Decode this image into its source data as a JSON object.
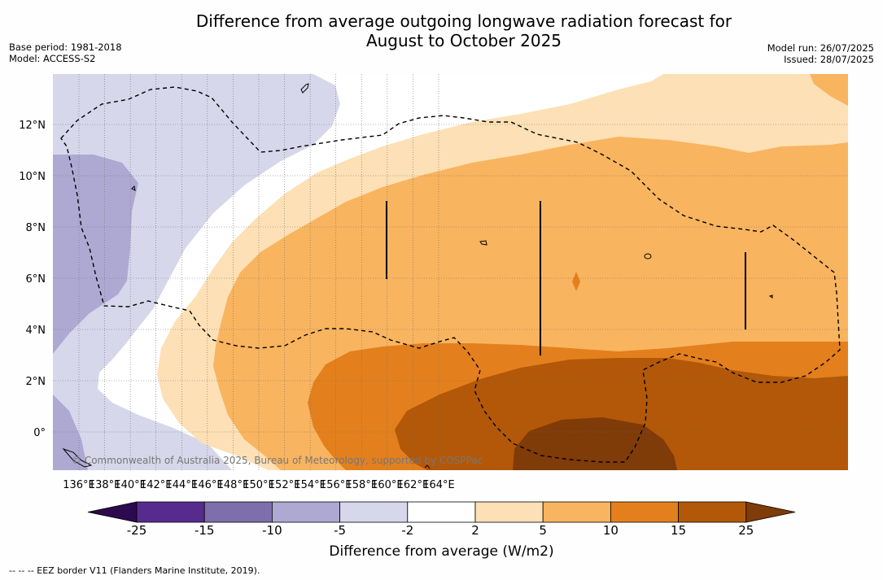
{
  "title_line1": "Difference from average outgoing longwave radiation forecast for",
  "title_line2": "August to October 2025",
  "base_period": "Base period: 1981-2018",
  "model": "Model: ACCESS-S2",
  "model_run": "Model run: 26/07/2025",
  "issued": "Issued: 28/07/2025",
  "copyright": "© Commonwealth of Australia 2025, Bureau of Meteorology, supported by COSPPac",
  "eez_note": "--  --  -- EEZ border V11 (Flanders Marine Institute, 2019).",
  "colorbar": {
    "title": "Difference from average (W/m2)",
    "tick_labels": [
      "-25",
      "-15",
      "-10",
      "-5",
      "-2",
      "2",
      "5",
      "10",
      "15",
      "25"
    ],
    "bin_colors": [
      "#572b8e",
      "#7c6fab",
      "#aea9d3",
      "#d6d7ea",
      "#ffffff",
      "#fde0b5",
      "#f9b45f",
      "#e3801d",
      "#b25808"
    ],
    "under_color": "#2d0a4e",
    "over_color": "#7f3b08"
  },
  "map": {
    "lon_labels": [
      "136°E",
      "138°E",
      "140°E",
      "142°E",
      "144°E",
      "146°E",
      "148°E",
      "150°E",
      "152°E",
      "154°E",
      "156°E",
      "158°E",
      "160°E",
      "162°E",
      "164°E"
    ],
    "lat_labels": [
      "12°N",
      "10°N",
      "8°N",
      "6°N",
      "4°N",
      "2°N",
      "0°"
    ]
  },
  "chart_data": {
    "type": "heatmap",
    "title": "Difference from average outgoing longwave radiation forecast for August to October 2025",
    "variable": "Difference from average outgoing longwave radiation (W/m2)",
    "levels": [
      -25,
      -15,
      -10,
      -5,
      -2,
      2,
      5,
      10,
      15,
      25
    ],
    "lon_range": [
      "135°E",
      "166°E"
    ],
    "lat_range": [
      "1.5°S",
      "14°N"
    ],
    "pattern": "Negative anomalies (-10 to -2 W/m2) in the west/north-west (135–147°E, north of ~5°N); positive anomalies increasing toward the south-east, peaking 15–25 W/m2 near 154–159°E, 1°S."
  }
}
